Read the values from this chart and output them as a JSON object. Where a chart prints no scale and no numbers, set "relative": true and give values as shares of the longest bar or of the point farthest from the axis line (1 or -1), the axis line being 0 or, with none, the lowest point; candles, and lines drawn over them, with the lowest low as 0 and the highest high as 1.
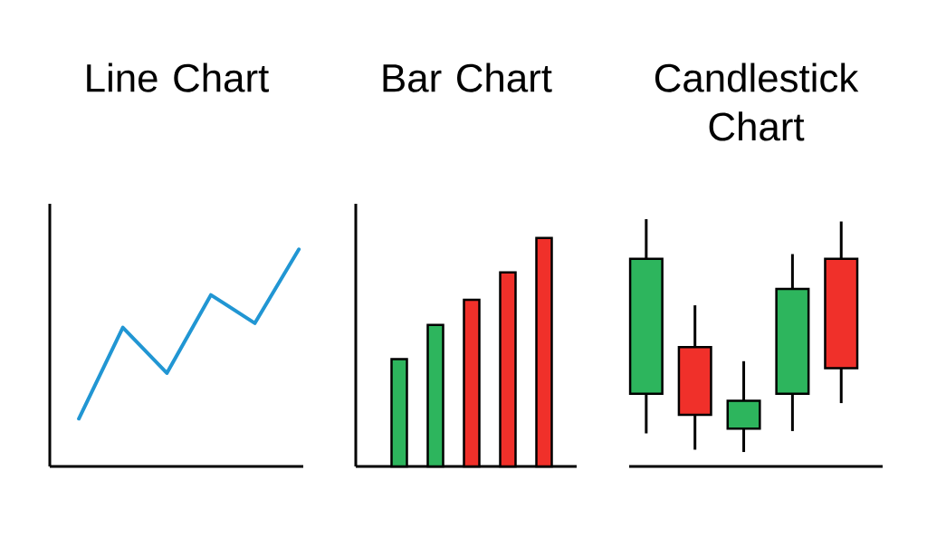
{
  "chart_data": [
    {
      "type": "line",
      "title": "Line Chart",
      "categories": [
        null,
        null,
        null,
        null,
        null,
        null
      ],
      "values": [
        0.22,
        0.64,
        0.43,
        0.79,
        0.66,
        1.0
      ],
      "color": "#2196d3",
      "relative": true
    },
    {
      "type": "bar",
      "title": "Bar Chart",
      "categories": [
        null,
        null,
        null,
        null,
        null
      ],
      "values": [
        0.47,
        0.62,
        0.73,
        0.85,
        1.0
      ],
      "colors": [
        "#2db55d",
        "#2db55d",
        "#f0302a",
        "#f0302a",
        "#f0302a"
      ],
      "relative": true
    },
    {
      "type": "candlestick",
      "title": "Candlestick Chart",
      "categories": [
        null,
        null,
        null,
        null,
        null
      ],
      "ohlc": [
        [
          0.25,
          1.0,
          0.08,
          0.83
        ],
        [
          0.45,
          0.63,
          0.01,
          0.16
        ],
        [
          0.1,
          0.39,
          0.0,
          0.22
        ],
        [
          0.25,
          0.85,
          0.09,
          0.7
        ],
        [
          0.83,
          0.99,
          0.21,
          0.36
        ]
      ],
      "colors": [
        "#2db55d",
        "#f0302a",
        "#2db55d",
        "#2db55d",
        "#f0302a"
      ],
      "relative": true
    }
  ]
}
